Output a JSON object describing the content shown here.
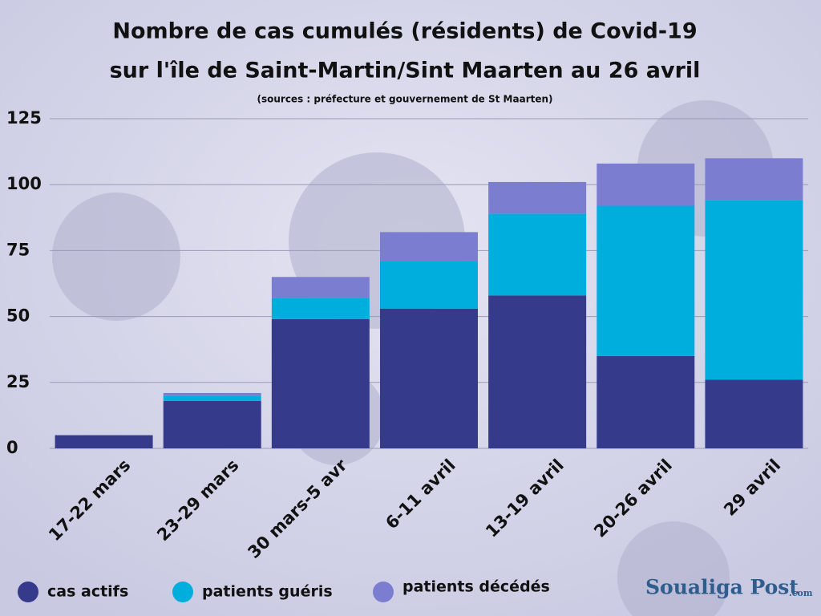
{
  "chart_data": {
    "type": "stacked_bar",
    "title": [
      "Nombre de  cas cumulés (résidents) de Covid-19",
      "sur l'île de Saint-Martin/Sint Maarten au 26 avril"
    ],
    "subtitle": "(sources : préfecture et gouvernement de St Maarten)",
    "categories": [
      "17-22 mars",
      "23-29 mars",
      "30 mars-5 avr",
      "6-11 avril",
      "13-19 avril",
      "20-26 avril",
      "29 avril"
    ],
    "series": [
      {
        "name": "cas actifs",
        "color": "#363a8a",
        "values": [
          5,
          18,
          49,
          53,
          58,
          35,
          26
        ]
      },
      {
        "name": "patients guéris",
        "color": "#00aede",
        "values": [
          0,
          2,
          8,
          18,
          31,
          57,
          68
        ]
      },
      {
        "name": "patients décédés",
        "color": "#7b7ed0",
        "values": [
          0,
          1,
          8,
          11,
          12,
          16,
          16
        ]
      }
    ],
    "ylim": [
      0,
      125
    ],
    "yticks": [
      0,
      25,
      50,
      75,
      100,
      125
    ],
    "grid": true,
    "legend": "bottom",
    "logo": {
      "name": "Soualiga Post",
      "suffix": ".com"
    }
  }
}
